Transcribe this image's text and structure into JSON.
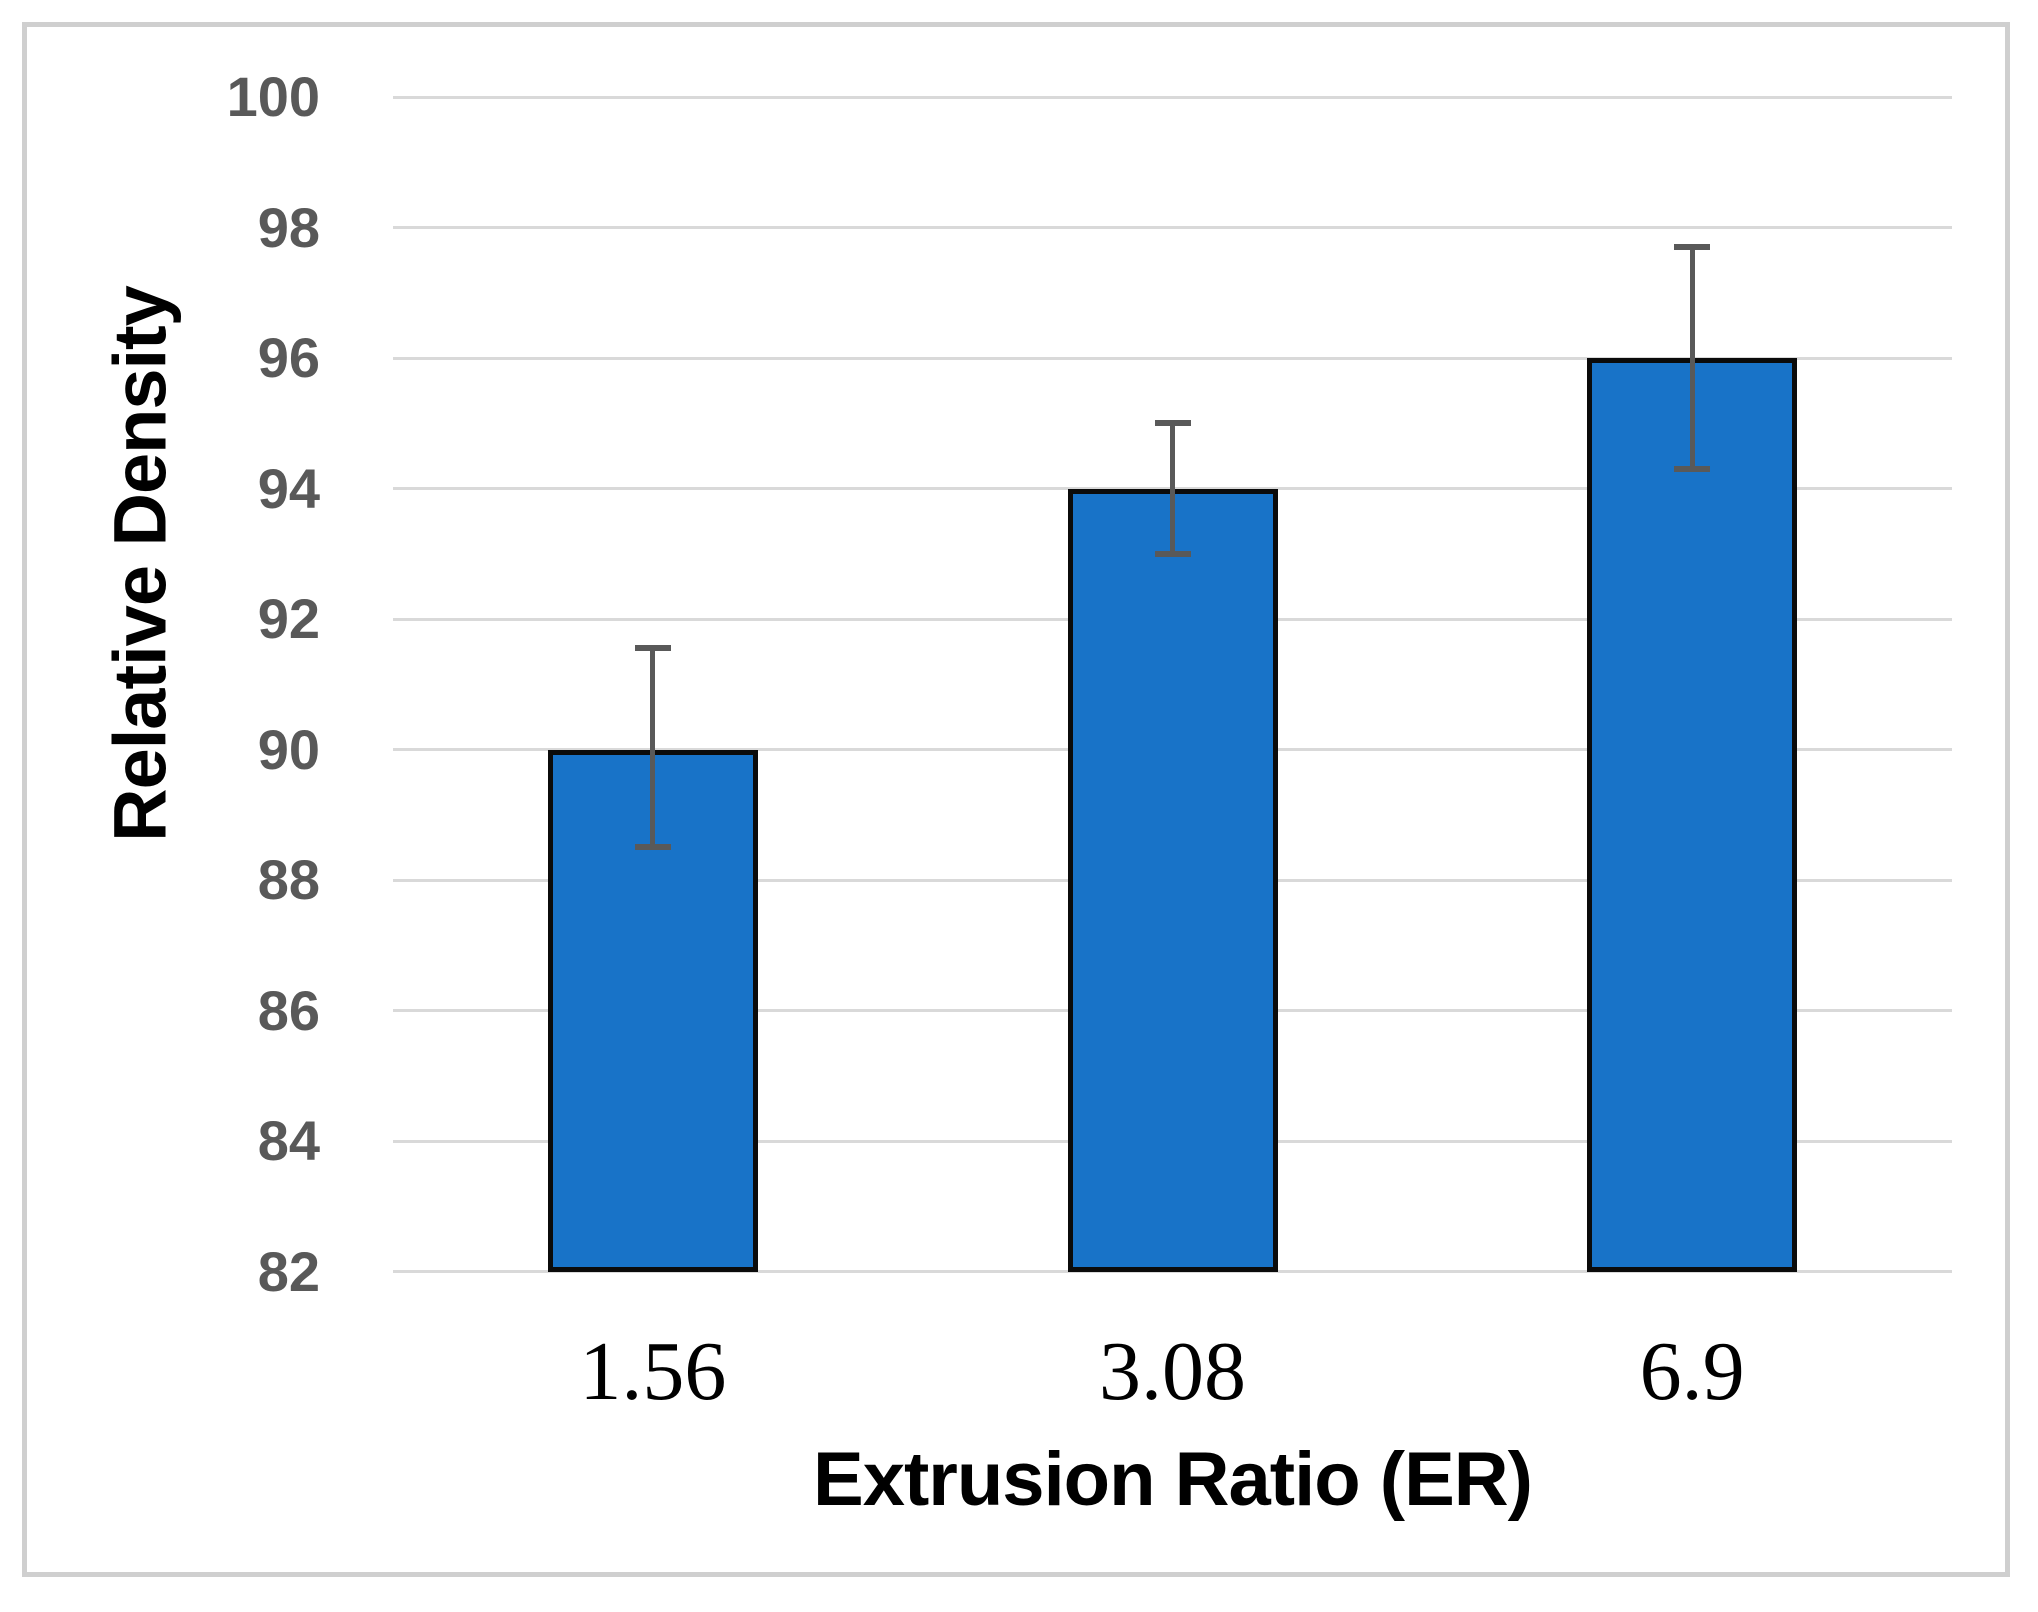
{
  "figure": {
    "background": "#ffffff",
    "frame_color": "#cfcfcf"
  },
  "chart_data": {
    "type": "bar",
    "title": "",
    "xlabel": "Extrusion Ratio (ER)",
    "ylabel": "Relative Density",
    "categories": [
      "1.56",
      "3.08",
      "6.9"
    ],
    "values": [
      90,
      94,
      96
    ],
    "error_plus": [
      1.55,
      1.0,
      1.7
    ],
    "error_minus": [
      1.5,
      1.0,
      1.7
    ],
    "ylim": [
      82,
      100
    ],
    "yticks": [
      100,
      98,
      96,
      94,
      92,
      90,
      88,
      86,
      84,
      82
    ],
    "ytick_step": 2,
    "grid": "horizontal-only",
    "legend": "none",
    "colors": {
      "bar_fill": "#1873c8",
      "bar_border": "#0b0b0b",
      "error_bar": "#595959",
      "gridline": "#d9d9d9",
      "y_tick_label": "#595959",
      "x_tick_label": "#000000",
      "axis_title": "#000000"
    }
  }
}
